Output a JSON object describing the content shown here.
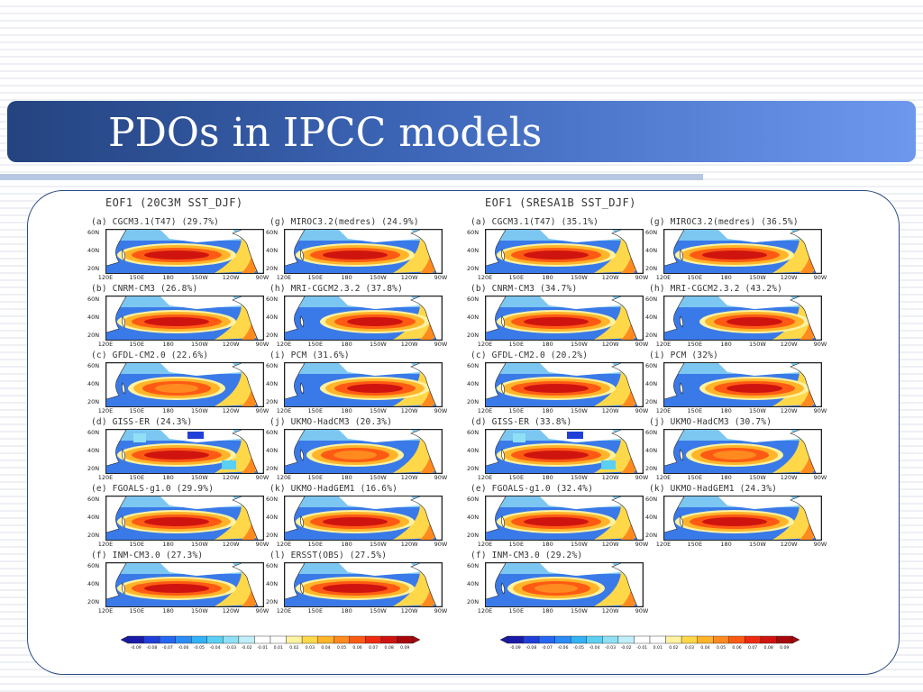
{
  "slide": {
    "title": "PDOs in IPCC models"
  },
  "groups": [
    {
      "header": "EOF1 (20C3M SST_DJF)",
      "panels": [
        {
          "label": "(a) CGCM3.1(T47) (29.7%)",
          "pattern": "std"
        },
        {
          "label": "(g) MIROC3.2(medres) (24.9%)",
          "pattern": "std"
        },
        {
          "label": "(b) CNRM-CM3 (26.8%)",
          "pattern": "std"
        },
        {
          "label": "(h) MRI-CGCM2.3.2 (37.8%)",
          "pattern": "east"
        },
        {
          "label": "(c) GFDL-CM2.0 (22.6%)",
          "pattern": "weak"
        },
        {
          "label": "(i) PCM (31.6%)",
          "pattern": "east"
        },
        {
          "label": "(d) GISS-ER (24.3%)",
          "pattern": "patchy"
        },
        {
          "label": "(j) UKMO-HadCM3 (20.3%)",
          "pattern": "weak"
        },
        {
          "label": "(e) FGOALS-g1.0 (29.9%)",
          "pattern": "std"
        },
        {
          "label": "(k) UKMO-HadGEM1 (16.6%)",
          "pattern": "std"
        },
        {
          "label": "(f) INM-CM3.0 (27.3%)",
          "pattern": "std"
        },
        {
          "label": "(l) ERSST(OBS) (27.5%)",
          "pattern": "std"
        }
      ]
    },
    {
      "header": "EOF1 (SRESA1B SST_DJF)",
      "panels": [
        {
          "label": "(a) CGCM3.1(T47) (35.1%)",
          "pattern": "std"
        },
        {
          "label": "(g) MIROC3.2(medres) (36.5%)",
          "pattern": "std"
        },
        {
          "label": "(b) CNRM-CM3 (34.7%)",
          "pattern": "std"
        },
        {
          "label": "(h) MRI-CGCM2.3.2 (43.2%)",
          "pattern": "east"
        },
        {
          "label": "(c) GFDL-CM2.0 (20.2%)",
          "pattern": "std"
        },
        {
          "label": "(i) PCM (32%)",
          "pattern": "east"
        },
        {
          "label": "(d) GISS-ER (33.8%)",
          "pattern": "patchy"
        },
        {
          "label": "(j) UKMO-HadCM3 (30.7%)",
          "pattern": "weak"
        },
        {
          "label": "(e) FGOALS-g1.0 (32.4%)",
          "pattern": "std"
        },
        {
          "label": "(k) UKMO-HadGEM1 (24.3%)",
          "pattern": "std"
        },
        {
          "label": "(f) INM-CM3.0 (29.2%)",
          "pattern": "weak"
        }
      ]
    }
  ],
  "map_axes": {
    "lat_labels": [
      "60N",
      "40N",
      "20N"
    ],
    "lon_labels": [
      "120E",
      "150E",
      "180",
      "150W",
      "120W",
      "90W"
    ]
  },
  "colorbar": {
    "labels": [
      "-0.09",
      "-0.08",
      "-0.07",
      "-0.06",
      "-0.05",
      "-0.04",
      "-0.03",
      "-0.02",
      "-0.01",
      "0.01",
      "0.02",
      "0.03",
      "0.04",
      "0.05",
      "0.06",
      "0.07",
      "0.08",
      "0.09"
    ],
    "colors": [
      "#1a1aa8",
      "#1f3fd8",
      "#2566f2",
      "#2b8cf6",
      "#33b2f5",
      "#5bd0f3",
      "#8fe0f5",
      "#c0eef9",
      "#ffffff",
      "#ffffff",
      "#fff2a0",
      "#ffd84a",
      "#ffb42a",
      "#ff8a1f",
      "#ff5a14",
      "#ef2a10",
      "#cf1410",
      "#a8080c"
    ]
  },
  "palette": {
    "title_bar_dark": "#24437f",
    "title_bar_light": "#6d98ee",
    "frame_border": "#2b4b86"
  }
}
